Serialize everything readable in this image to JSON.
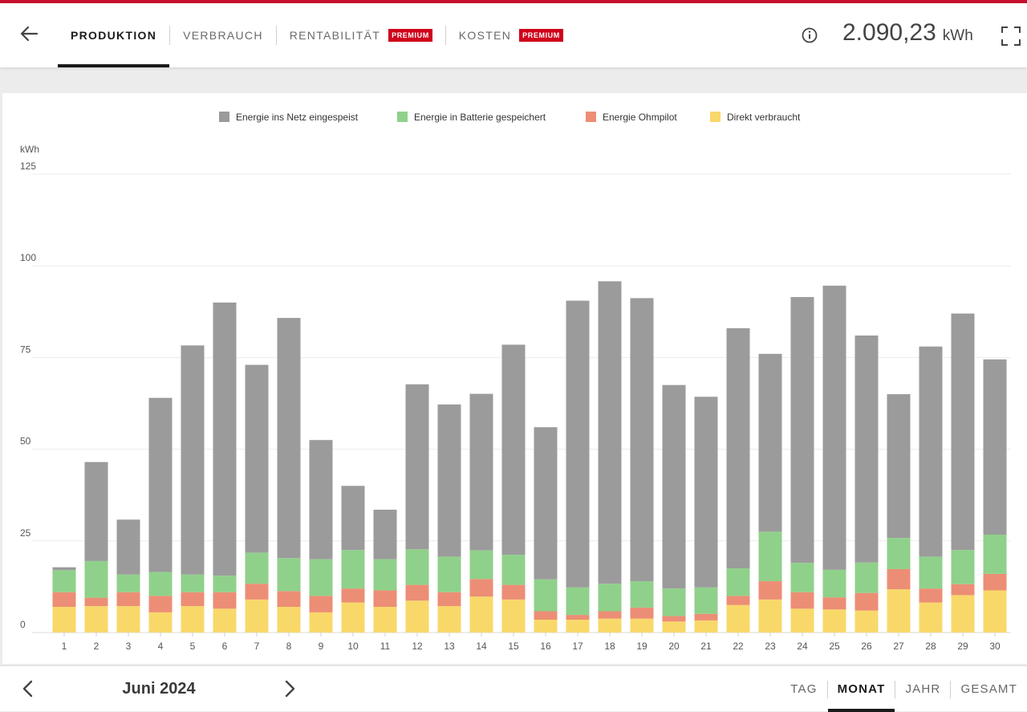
{
  "header": {
    "tabs": [
      {
        "label": "PRODUKTION",
        "active": true,
        "badge": ""
      },
      {
        "label": "VERBRAUCH",
        "active": false,
        "badge": ""
      },
      {
        "label": "RENTABILITÄT",
        "active": false,
        "badge": "PREMIUM"
      },
      {
        "label": "KOSTEN",
        "active": false,
        "badge": "PREMIUM"
      }
    ],
    "total_value": "2.090,23",
    "total_unit": "kWh",
    "icons": {
      "back": "arrow-left-icon",
      "info": "info-icon",
      "fullscreen": "fullscreen-icon"
    }
  },
  "footer": {
    "period_label": "Juni 2024",
    "range_tabs": [
      {
        "label": "TAG",
        "active": false
      },
      {
        "label": "MONAT",
        "active": true
      },
      {
        "label": "JAHR",
        "active": false
      },
      {
        "label": "GESAMT",
        "active": false
      }
    ]
  },
  "colors": {
    "accent": "#c8102e",
    "badge": "#d0021b"
  },
  "chart_data": {
    "type": "bar",
    "stacked": true,
    "ylabel": "kWh",
    "ylim": [
      0,
      125
    ],
    "yticks": [
      0,
      25,
      50,
      75,
      100,
      125
    ],
    "grid": true,
    "legend_position": "top-center",
    "categories": [
      "1",
      "2",
      "3",
      "4",
      "5",
      "6",
      "7",
      "8",
      "9",
      "10",
      "11",
      "12",
      "13",
      "14",
      "15",
      "16",
      "17",
      "18",
      "19",
      "20",
      "21",
      "22",
      "23",
      "24",
      "25",
      "26",
      "27",
      "28",
      "29",
      "30"
    ],
    "series": [
      {
        "name": "Direkt verbraucht",
        "color": "#f9d86a",
        "values": [
          7.0,
          7.2,
          7.2,
          5.5,
          7.2,
          6.5,
          9.0,
          7.0,
          5.5,
          8.2,
          7.0,
          8.7,
          7.2,
          9.8,
          9.0,
          3.5,
          3.5,
          3.8,
          3.8,
          3.0,
          3.3,
          7.5,
          9.0,
          6.5,
          6.3,
          6.0,
          11.8,
          8.2,
          10.2,
          11.5
        ]
      },
      {
        "name": "Energie Ohmpilot",
        "color": "#ec8e75",
        "values": [
          4.0,
          2.3,
          3.8,
          4.5,
          3.8,
          4.5,
          4.3,
          4.3,
          4.5,
          3.8,
          4.5,
          4.3,
          3.8,
          4.8,
          4.0,
          2.3,
          1.3,
          2.0,
          3.0,
          1.5,
          1.8,
          2.5,
          5.0,
          4.5,
          3.3,
          4.8,
          5.5,
          3.8,
          3.0,
          4.5
        ]
      },
      {
        "name": "Energie in Batterie gespeichert",
        "color": "#8fd18a",
        "values": [
          6.0,
          10.0,
          4.8,
          6.5,
          4.8,
          4.5,
          8.5,
          9.0,
          10.0,
          10.5,
          8.5,
          9.7,
          9.7,
          7.8,
          8.2,
          8.7,
          7.5,
          7.5,
          7.2,
          7.5,
          7.2,
          7.5,
          13.5,
          8.0,
          7.5,
          8.3,
          8.5,
          8.7,
          9.3,
          10.7
        ]
      },
      {
        "name": "Energie ins Netz eingespeist",
        "color": "#9b9b9b",
        "values": [
          0.8,
          27.0,
          15.0,
          47.5,
          62.5,
          74.5,
          51.2,
          65.5,
          32.5,
          17.5,
          13.5,
          45.0,
          41.5,
          42.7,
          57.3,
          41.5,
          78.2,
          82.5,
          77.2,
          55.5,
          52.0,
          65.5,
          48.5,
          72.5,
          77.5,
          61.9,
          39.2,
          57.3,
          64.5,
          47.8
        ]
      }
    ]
  }
}
